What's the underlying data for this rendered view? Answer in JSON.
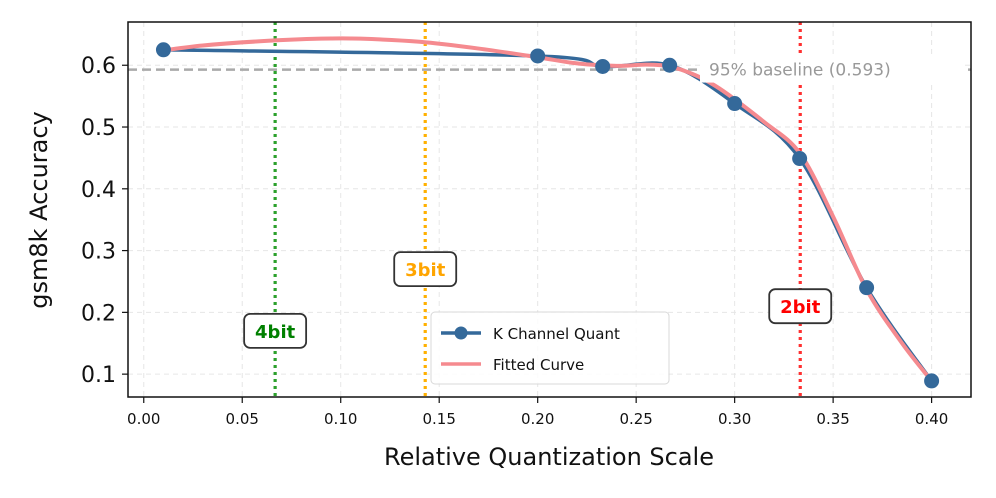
{
  "chart_data": {
    "type": "line",
    "xlabel": "Relative Quantization Scale",
    "ylabel": "gsm8k Accuracy",
    "xlim": [
      -0.008,
      0.42
    ],
    "ylim": [
      0.063,
      0.67
    ],
    "x_ticks": [
      0.0,
      0.05,
      0.1,
      0.15,
      0.2,
      0.25,
      0.3,
      0.35,
      0.4
    ],
    "x_tick_labels": [
      "0.00",
      "0.05",
      "0.10",
      "0.15",
      "0.20",
      "0.25",
      "0.30",
      "0.35",
      "0.40"
    ],
    "y_ticks": [
      0.1,
      0.2,
      0.3,
      0.4,
      0.5,
      0.6
    ],
    "y_tick_labels": [
      "0.1",
      "0.2",
      "0.3",
      "0.4",
      "0.5",
      "0.6"
    ],
    "grid": true,
    "legend_position": "bottom-center",
    "series": [
      {
        "name": "K Channel Quant",
        "color": "#34699a",
        "marker": "circle",
        "x": [
          0.01,
          0.2,
          0.233,
          0.267,
          0.3,
          0.333,
          0.367,
          0.4
        ],
        "y": [
          0.625,
          0.615,
          0.598,
          0.6,
          0.538,
          0.449,
          0.24,
          0.089
        ]
      },
      {
        "name": "Fitted Curve",
        "color": "#f58a8f",
        "x": [
          0.01,
          0.03,
          0.06,
          0.09,
          0.11,
          0.14,
          0.17,
          0.2,
          0.22,
          0.24,
          0.255,
          0.267,
          0.28,
          0.29,
          0.3,
          0.315,
          0.333,
          0.35,
          0.367,
          0.385,
          0.4
        ],
        "y": [
          0.624,
          0.632,
          0.639,
          0.643,
          0.643,
          0.638,
          0.627,
          0.613,
          0.603,
          0.599,
          0.601,
          0.598,
          0.584,
          0.567,
          0.545,
          0.508,
          0.458,
          0.355,
          0.237,
          0.15,
          0.089
        ]
      }
    ],
    "reference_lines": [
      {
        "orientation": "vertical",
        "x": 0.0667,
        "color": "#2ca02c",
        "label": "4bit",
        "label_color": "#008000",
        "label_y": 0.17
      },
      {
        "orientation": "vertical",
        "x": 0.1429,
        "color": "#ffb000",
        "label": "3bit",
        "label_color": "#ffa500",
        "label_y": 0.27
      },
      {
        "orientation": "vertical",
        "x": 0.3333,
        "color": "#ff3030",
        "label": "2bit",
        "label_color": "#ff0000",
        "label_y": 0.21
      },
      {
        "orientation": "horizontal",
        "y": 0.593,
        "color": "#aaaaaa",
        "label": "95% baseline (0.593)"
      }
    ]
  }
}
